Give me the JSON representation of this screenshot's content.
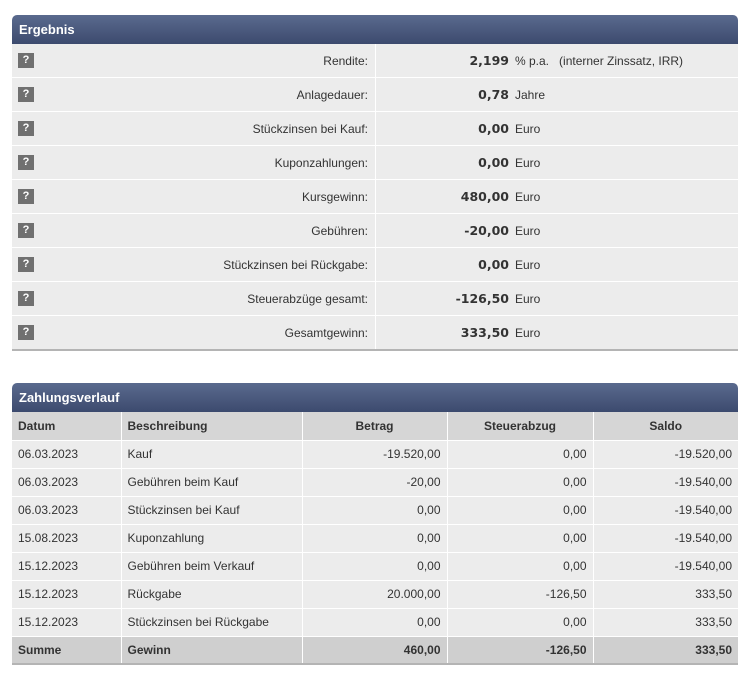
{
  "ergebnis": {
    "title": "Ergebnis",
    "help_label": "?",
    "rows": [
      {
        "label": "Rendite:",
        "value": "2,199",
        "unit": "% p.a.",
        "note": "(interner Zinssatz, IRR)"
      },
      {
        "label": "Anlagedauer:",
        "value": "0,78",
        "unit": "Jahre",
        "note": ""
      },
      {
        "label": "Stückzinsen bei Kauf:",
        "value": "0,00",
        "unit": "Euro",
        "note": ""
      },
      {
        "label": "Kuponzahlungen:",
        "value": "0,00",
        "unit": "Euro",
        "note": ""
      },
      {
        "label": "Kursgewinn:",
        "value": "480,00",
        "unit": "Euro",
        "note": ""
      },
      {
        "label": "Gebühren:",
        "value": "-20,00",
        "unit": "Euro",
        "note": ""
      },
      {
        "label": "Stückzinsen bei Rückgabe:",
        "value": "0,00",
        "unit": "Euro",
        "note": ""
      },
      {
        "label": "Steuerabzüge gesamt:",
        "value": "-126,50",
        "unit": "Euro",
        "note": ""
      },
      {
        "label": "Gesamtgewinn:",
        "value": "333,50",
        "unit": "Euro",
        "note": ""
      }
    ]
  },
  "zahlungsverlauf": {
    "title": "Zahlungsverlauf",
    "columns": [
      "Datum",
      "Beschreibung",
      "Betrag",
      "Steuerabzug",
      "Saldo"
    ],
    "rows": [
      [
        "06.03.2023",
        "Kauf",
        "-19.520,00",
        "0,00",
        "-19.520,00"
      ],
      [
        "06.03.2023",
        "Gebühren beim Kauf",
        "-20,00",
        "0,00",
        "-19.540,00"
      ],
      [
        "06.03.2023",
        "Stückzinsen bei Kauf",
        "0,00",
        "0,00",
        "-19.540,00"
      ],
      [
        "15.08.2023",
        "Kuponzahlung",
        "0,00",
        "0,00",
        "-19.540,00"
      ],
      [
        "15.12.2023",
        "Gebühren beim Verkauf",
        "0,00",
        "0,00",
        "-19.540,00"
      ],
      [
        "15.12.2023",
        "Rückgabe",
        "20.000,00",
        "-126,50",
        "333,50"
      ],
      [
        "15.12.2023",
        "Stückzinsen bei Rückgabe",
        "0,00",
        "0,00",
        "333,50"
      ]
    ],
    "summary": [
      "Summe",
      "Gewinn",
      "460,00",
      "-126,50",
      "333,50"
    ]
  }
}
